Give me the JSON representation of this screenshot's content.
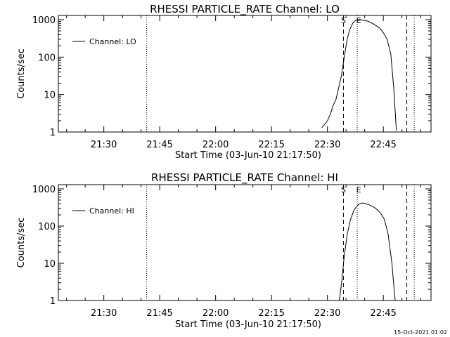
{
  "chart_data": [
    {
      "type": "line",
      "title": "RHESSI PARTICLE_RATE Channel: LO",
      "xlabel": "Start Time (03-Jun-10 21:17:50)",
      "ylabel": "Counts/sec",
      "y_scale": "log",
      "ylim": [
        1,
        1000
      ],
      "y_ticks": [
        1,
        10,
        100,
        1000
      ],
      "y_tick_labels": [
        "1",
        "10",
        "100",
        "1000"
      ],
      "x_ticks": [
        "21:30",
        "21:45",
        "22:00",
        "22:15",
        "22:30",
        "22:45"
      ],
      "x_tick_minutes": [
        30,
        45,
        60,
        75,
        90,
        105
      ],
      "xlim_minutes": [
        17.8,
        117.8
      ],
      "grid": false,
      "legend": {
        "placement": "top-left",
        "entries": [
          "Channel: LO"
        ]
      },
      "annotations": [
        {
          "text": "S",
          "x_minute": 94.3
        },
        {
          "text": "E",
          "x_minute": 98.0
        }
      ],
      "vertical_lines": [
        {
          "x_minute": 41.5,
          "style": "dotted"
        },
        {
          "x_minute": 94.3,
          "style": "dashed"
        },
        {
          "x_minute": 98.0,
          "style": "dotted"
        },
        {
          "x_minute": 111.3,
          "style": "dashed"
        },
        {
          "x_minute": 113.3,
          "style": "dotted"
        }
      ],
      "series": [
        {
          "name": "Channel: LO",
          "x_minutes": [
            88.5,
            89.3,
            90.0,
            90.8,
            91.5,
            92.3,
            93.0,
            93.7,
            94.3,
            94.8,
            95.3,
            96.0,
            96.8,
            97.5,
            98.3,
            99.0,
            100.0,
            101.0,
            102.0,
            103.0,
            104.0,
            105.0,
            106.0,
            107.0,
            107.8,
            108.5
          ],
          "values": [
            1.3,
            1.6,
            2.0,
            3.0,
            5.0,
            7.5,
            15,
            30,
            70,
            150,
            300,
            550,
            800,
            950,
            1000,
            1000,
            950,
            900,
            800,
            700,
            600,
            450,
            300,
            120,
            15,
            1.1
          ]
        }
      ]
    },
    {
      "type": "line",
      "title": "RHESSI PARTICLE_RATE Channel: HI",
      "xlabel": "Start Time (03-Jun-10 21:17:50)",
      "ylabel": "Counts/sec",
      "y_scale": "log",
      "ylim": [
        1,
        1000
      ],
      "y_ticks": [
        1,
        10,
        100,
        1000
      ],
      "y_tick_labels": [
        "1",
        "10",
        "100",
        "1000"
      ],
      "x_ticks": [
        "21:30",
        "21:45",
        "22:00",
        "22:15",
        "22:30",
        "22:45"
      ],
      "x_tick_minutes": [
        30,
        45,
        60,
        75,
        90,
        105
      ],
      "xlim_minutes": [
        17.8,
        117.8
      ],
      "grid": false,
      "legend": {
        "placement": "top-left",
        "entries": [
          "Channel: HI"
        ]
      },
      "annotations": [
        {
          "text": "S",
          "x_minute": 94.3
        },
        {
          "text": "E",
          "x_minute": 98.0
        }
      ],
      "vertical_lines": [
        {
          "x_minute": 41.5,
          "style": "dotted"
        },
        {
          "x_minute": 94.3,
          "style": "dashed"
        },
        {
          "x_minute": 98.0,
          "style": "dotted"
        },
        {
          "x_minute": 111.3,
          "style": "dashed"
        },
        {
          "x_minute": 113.3,
          "style": "dotted"
        }
      ],
      "series": [
        {
          "name": "Channel: HI",
          "x_minutes": [
            93.2,
            93.8,
            94.5,
            95.3,
            96.2,
            97.2,
            98.3,
            99.3,
            100.3,
            101.3,
            102.3,
            103.3,
            104.3,
            105.3,
            106.3,
            107.3,
            107.9,
            108.2
          ],
          "values": [
            1.0,
            3,
            15,
            60,
            150,
            280,
            380,
            420,
            400,
            370,
            330,
            280,
            220,
            150,
            60,
            10,
            2,
            1.0
          ]
        }
      ]
    }
  ],
  "footer": {
    "timestamp": "15-Oct-2021 01:02"
  }
}
